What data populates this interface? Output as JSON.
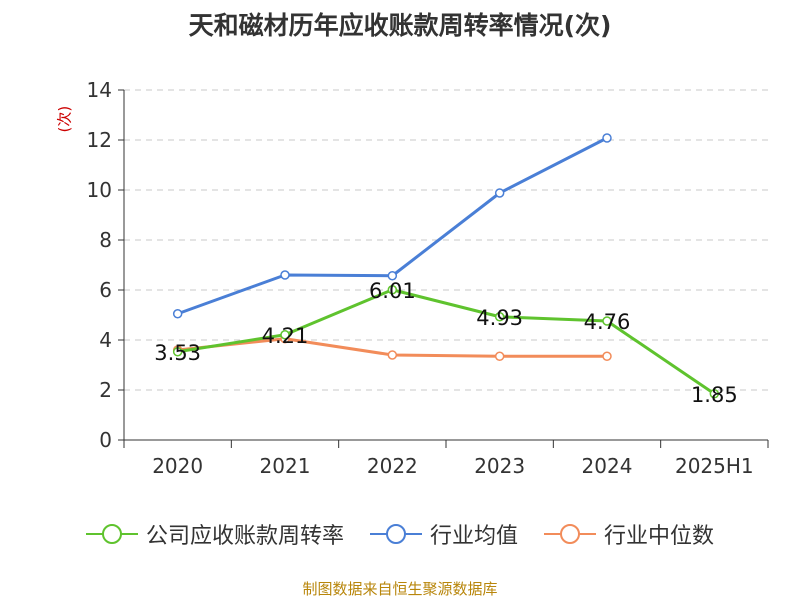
{
  "chart_data": {
    "type": "line",
    "title": "天和磁材历年应收账款周转率情况(次)",
    "ylabel": "(次)",
    "xlabel": "",
    "categories": [
      "2020",
      "2021",
      "2022",
      "2023",
      "2024",
      "2025H1"
    ],
    "ylim": [
      0,
      14
    ],
    "yticks": [
      0,
      2,
      4,
      6,
      8,
      10,
      12,
      14
    ],
    "grid": "horizontal-dashed",
    "legend_position": "bottom",
    "series": [
      {
        "name": "公司应收账款周转率",
        "values": [
          3.53,
          4.21,
          6.01,
          4.93,
          4.76,
          1.85
        ],
        "labels": [
          "3.53",
          "4.21",
          "6.01",
          "4.93",
          "4.76",
          "1.85"
        ],
        "color": "#5fc32e"
      },
      {
        "name": "行业均值",
        "values": [
          5.05,
          6.6,
          6.57,
          9.88,
          12.08,
          null
        ],
        "color": "#4a7fd6"
      },
      {
        "name": "行业中位数",
        "values": [
          3.6,
          4.05,
          3.4,
          3.35,
          3.35,
          null
        ],
        "color": "#f28c5a"
      }
    ]
  },
  "source_note": "制图数据来自恒生聚源数据库"
}
